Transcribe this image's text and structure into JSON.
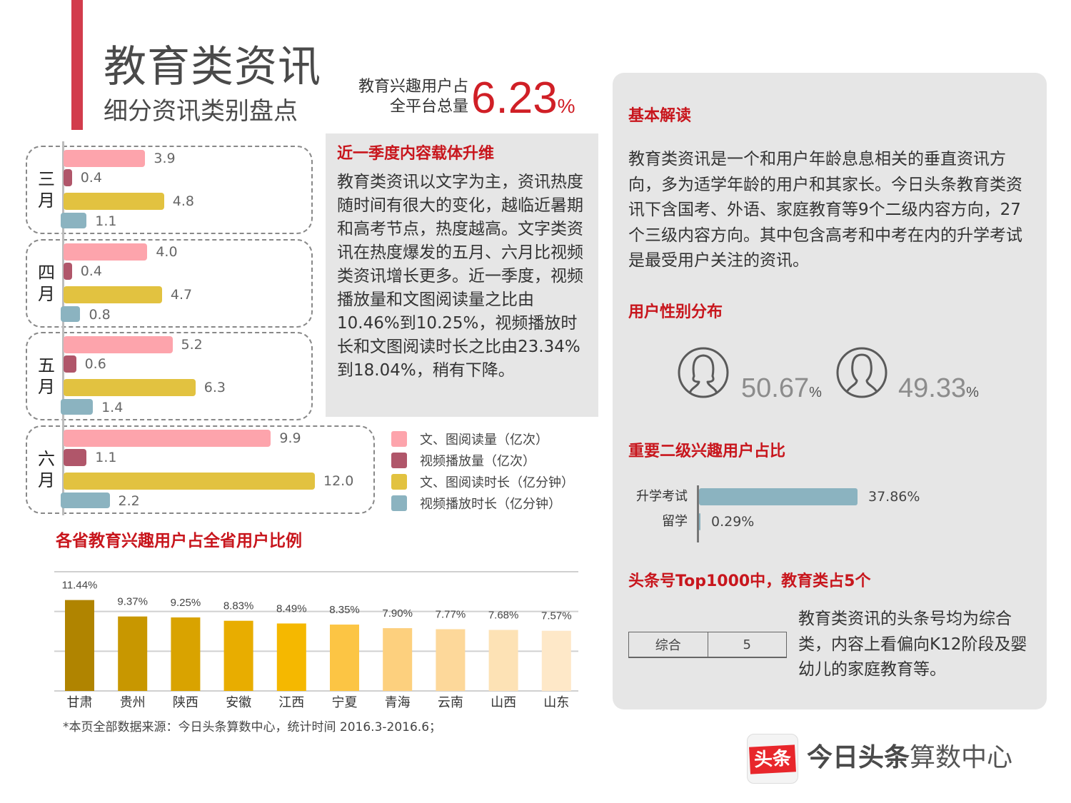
{
  "header": {
    "title": "教育类资讯",
    "subtitle": "细分资讯类别盘点",
    "kpi_label_line1": "教育兴趣用户占",
    "kpi_label_line2": "全平台总量",
    "kpi_value": "6.23",
    "kpi_unit": "%"
  },
  "colors": {
    "accent_red": "#c8161d",
    "bar_red": "#d23c4c",
    "text_read": "#fda4ac",
    "video_play": "#b0566a",
    "text_time": "#e2c240",
    "video_time": "#8bb3c0"
  },
  "quarter_box": {
    "title": "近一季度内容载体升维",
    "text": "教育类资讯以文字为主，资讯热度随时间有很大的变化，越临近暑期和高考节点，热度越高。文字类资讯在热度爆发的五月、六月比视频类资讯增长更多。近一季度，视频播放量和文图阅读量之比由10.46%到10.25%，视频播放时长和文图阅读时长之比由23.34%到18.04%，稍有下降。"
  },
  "chart_data": [
    {
      "type": "bar",
      "orientation": "horizontal",
      "title": "",
      "categories": [
        "三月",
        "四月",
        "五月",
        "六月"
      ],
      "series": [
        {
          "name": "文、图阅读量（亿次）",
          "values": [
            3.9,
            4.0,
            5.2,
            9.9
          ],
          "labels": [
            "3.9",
            "4.0",
            "5.2",
            "9.9"
          ],
          "color": "#fda4ac"
        },
        {
          "name": "视频播放量（亿次）",
          "values": [
            0.4,
            0.4,
            0.6,
            1.1
          ],
          "labels": [
            "0.4",
            "0.4",
            "0.6",
            "1.1"
          ],
          "color": "#b0566a"
        },
        {
          "name": "文、图阅读时长（亿分钟）",
          "values": [
            4.8,
            4.7,
            6.3,
            12.0
          ],
          "labels": [
            "4.8",
            "4.7",
            "6.3",
            "12.0"
          ],
          "color": "#e2c240"
        },
        {
          "name": "视频播放时长（亿分钟）",
          "values": [
            1.1,
            0.8,
            1.4,
            2.2
          ],
          "labels": [
            "1.1",
            "0.8",
            "1.4",
            "2.2"
          ],
          "color": "#8bb3c0"
        }
      ],
      "legend_position": "bottom-right",
      "xlim": [
        0,
        12
      ]
    },
    {
      "type": "bar",
      "title": "各省教育兴趣用户占全省用户比例",
      "categories": [
        "甘肃",
        "贵州",
        "陕西",
        "安徽",
        "江西",
        "宁夏",
        "青海",
        "云南",
        "山西",
        "山东"
      ],
      "values": [
        11.44,
        9.37,
        9.25,
        8.83,
        8.49,
        8.35,
        7.9,
        7.77,
        7.68,
        7.57
      ],
      "labels": [
        "11.44%",
        "9.37%",
        "9.25%",
        "8.83%",
        "8.49%",
        "8.35%",
        "7.90%",
        "7.77%",
        "7.68%",
        "7.57%"
      ],
      "colors": [
        "#b08400",
        "#c89700",
        "#d9a300",
        "#e8ad00",
        "#f5b800",
        "#fcc544",
        "#fdd07e",
        "#fdd89a",
        "#fde2b5",
        "#fee8c8"
      ],
      "ylim": [
        0,
        15
      ],
      "grid": true,
      "xlabel": "",
      "ylabel": ""
    },
    {
      "type": "bar",
      "orientation": "horizontal",
      "title": "重要二级兴趣用户占比",
      "categories": [
        "升学考试",
        "留学"
      ],
      "values": [
        37.86,
        0.29
      ],
      "labels": [
        "37.86%",
        "0.29%"
      ],
      "color": "#8bb3c0"
    }
  ],
  "footnote": "*本页全部数据来源：今日头条算数中心，统计时间 2016.3-2016.6；",
  "right_panel": {
    "basic_title": "基本解读",
    "basic_text": "教育类资讯是一个和用户年龄息息相关的垂直资讯方向，多为适学年龄的用户和其家长。今日头条教育类资讯下含国考、外语、家庭教育等9个二级内容方向，27个三级内容方向。其中包含高考和中考在内的升学考试是最受用户关注的资讯。",
    "gender_title": "用户性别分布",
    "female_value": "50.67",
    "male_value": "49.33",
    "gender_unit": "%",
    "interest_title": "重要二级兴趣用户占比",
    "top_title": "头条号Top1000中，教育类占5个",
    "top_table": {
      "category": "综合",
      "count": "5"
    },
    "top_text": "教育类资讯的头条号均为综合类，内容上看偏向K12阶段及婴幼儿的家庭教育等。"
  },
  "logo": {
    "icon_text": "头条",
    "brand_bold": "今日头条",
    "brand_rest": "算数中心"
  }
}
